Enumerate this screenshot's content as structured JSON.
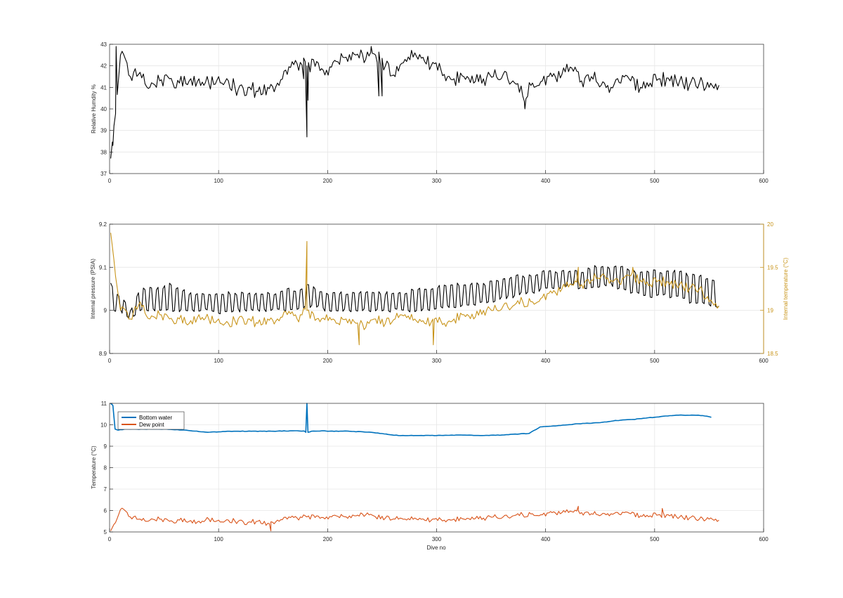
{
  "chart_data": [
    {
      "type": "line",
      "xlabel": "",
      "ylabel": "Relative Humdity %",
      "xlim": [
        0,
        600
      ],
      "ylim": [
        37,
        43
      ],
      "xticks": [
        0,
        100,
        200,
        300,
        400,
        500,
        600
      ],
      "yticks": [
        37,
        38,
        39,
        40,
        41,
        42,
        43
      ],
      "grid": true,
      "colors": {
        "humidity": "#000000"
      },
      "series": [
        {
          "key": "humidity",
          "x_start": 1,
          "x_step": 9,
          "values": [
            37.7,
            42.5,
            41.5,
            41.7,
            41.0,
            41.3,
            41.4,
            41.2,
            41.3,
            41.4,
            41.2,
            41.5,
            41.3,
            40.9,
            41.0,
            40.8,
            41.0,
            41.2,
            41.6,
            42.1,
            42.0,
            42.2,
            41.8,
            42.2,
            42.4,
            42.5,
            42.3,
            42.5,
            42.0,
            41.5,
            42.3,
            42.6,
            42.2,
            42.1,
            41.6,
            41.4,
            41.5,
            41.2,
            41.4,
            41.5,
            41.6,
            41.3,
            40.6,
            41.2,
            41.3,
            41.5,
            41.6,
            41.9,
            41.3,
            41.5,
            41.1,
            41.0,
            41.2,
            41.3,
            41.0,
            41.2,
            41.4,
            41.3,
            41.3,
            41.1,
            41.2,
            41.0,
            41.1
          ],
          "extra_points": [
            [
              3,
              38.3
            ],
            [
              6,
              42.9
            ],
            [
              181,
              38.7
            ],
            [
              182,
              40.4
            ],
            [
              178,
              41.4
            ],
            [
              240,
              42.9
            ],
            [
              250,
              40.6
            ],
            [
              381,
              40.0
            ],
            [
              247,
              40.6
            ]
          ]
        }
      ]
    },
    {
      "type": "line",
      "xlabel": "",
      "ylabel": "Internal pressure (PSIA)",
      "ylabel_right": "Internal temperature (°C)",
      "xlim": [
        0,
        600
      ],
      "ylim": [
        8.9,
        9.2
      ],
      "ylim_right": [
        18.5,
        20
      ],
      "xticks": [
        0,
        100,
        200,
        300,
        400,
        500,
        600
      ],
      "yticks": [
        8.9,
        9,
        9.1,
        9.2
      ],
      "yticks_right": [
        18.5,
        19,
        19.5,
        20
      ],
      "grid": true,
      "colors": {
        "pressure": "#000000",
        "temperature": "#c8941a"
      },
      "series": [
        {
          "key": "pressure",
          "axis": "left",
          "x_start": 1,
          "x_step": 9,
          "low": [
            9.0,
            9.0,
            8.98,
            9.0,
            9.0,
            9.0,
            9.0,
            9.0,
            9.0,
            9.0,
            9.0,
            8.99,
            9.0,
            9.0,
            9.0,
            9.0,
            9.0,
            9.0,
            9.0,
            9.0,
            9.01,
            9.01,
            9.0,
            9.0,
            9.0,
            9.0,
            9.0,
            9.0,
            9.0,
            9.0,
            9.0,
            9.0,
            9.0,
            9.0,
            9.01,
            9.01,
            9.01,
            9.01,
            9.02,
            9.02,
            9.03,
            9.03,
            9.04,
            9.04,
            9.05,
            9.05,
            9.05,
            9.06,
            9.05,
            9.05,
            9.06,
            9.06,
            9.05,
            9.04,
            9.04,
            9.03,
            9.04,
            9.03,
            9.03,
            9.02,
            9.02,
            9.01,
            9.01
          ],
          "high": [
            9.06,
            9.03,
            9.0,
            9.05,
            9.05,
            9.05,
            9.06,
            9.05,
            9.04,
            9.04,
            9.04,
            9.04,
            9.04,
            9.04,
            9.04,
            9.04,
            9.04,
            9.04,
            9.05,
            9.04,
            9.06,
            9.05,
            9.04,
            9.04,
            9.04,
            9.04,
            9.04,
            9.04,
            9.04,
            9.04,
            9.04,
            9.05,
            9.05,
            9.05,
            9.06,
            9.06,
            9.06,
            9.06,
            9.06,
            9.07,
            9.07,
            9.08,
            9.08,
            9.08,
            9.09,
            9.09,
            9.09,
            9.09,
            9.09,
            9.1,
            9.1,
            9.1,
            9.1,
            9.09,
            9.09,
            9.09,
            9.09,
            9.09,
            9.09,
            9.08,
            9.08,
            9.07,
            9.07
          ]
        },
        {
          "key": "temperature",
          "axis": "right",
          "x_start": 1,
          "x_step": 9,
          "values": [
            19.9,
            19.0,
            18.9,
            19.1,
            18.9,
            18.95,
            18.9,
            18.9,
            18.85,
            18.95,
            18.9,
            18.9,
            18.85,
            18.9,
            18.9,
            18.85,
            18.9,
            18.9,
            18.95,
            18.9,
            19.0,
            18.9,
            18.95,
            18.85,
            18.9,
            18.85,
            18.8,
            18.9,
            18.85,
            18.9,
            18.95,
            18.9,
            18.85,
            18.9,
            18.85,
            18.9,
            18.95,
            18.9,
            19.0,
            19.0,
            19.05,
            19.05,
            19.1,
            19.1,
            19.15,
            19.2,
            19.25,
            19.3,
            19.3,
            19.35,
            19.4,
            19.35,
            19.3,
            19.4,
            19.35,
            19.3,
            19.35,
            19.3,
            19.3,
            19.25,
            19.25,
            19.1,
            19.05
          ],
          "extra_points": [
            [
              181,
              19.8
            ],
            [
              229,
              18.6
            ],
            [
              297,
              18.6
            ],
            [
              430,
              19.5
            ],
            [
              480,
              19.5
            ]
          ]
        }
      ]
    },
    {
      "type": "line",
      "xlabel": "Dive no",
      "ylabel": "Temperature (°C)",
      "xlim": [
        0,
        600
      ],
      "ylim": [
        5,
        11
      ],
      "xticks": [
        0,
        100,
        200,
        300,
        400,
        500,
        600
      ],
      "yticks": [
        5,
        6,
        7,
        8,
        9,
        10,
        11
      ],
      "grid": true,
      "legend": "top-left",
      "colors": {
        "bottom": "#0072bd",
        "dew": "#d95319"
      },
      "series": [
        {
          "name": "Bottom water",
          "key": "bottom",
          "points": [
            [
              1,
              11.0
            ],
            [
              3,
              10.9
            ],
            [
              5,
              9.8
            ],
            [
              8,
              9.75
            ],
            [
              15,
              9.8
            ],
            [
              30,
              9.8
            ],
            [
              50,
              9.8
            ],
            [
              70,
              9.75
            ],
            [
              90,
              9.65
            ],
            [
              110,
              9.7
            ],
            [
              130,
              9.7
            ],
            [
              150,
              9.7
            ],
            [
              170,
              9.72
            ],
            [
              179,
              9.7
            ],
            [
              180,
              9.65
            ],
            [
              181,
              11.0
            ],
            [
              182,
              9.65
            ],
            [
              185,
              9.7
            ],
            [
              195,
              9.72
            ],
            [
              200,
              9.7
            ],
            [
              220,
              9.7
            ],
            [
              240,
              9.65
            ],
            [
              255,
              9.55
            ],
            [
              265,
              9.5
            ],
            [
              280,
              9.5
            ],
            [
              300,
              9.5
            ],
            [
              320,
              9.52
            ],
            [
              340,
              9.5
            ],
            [
              360,
              9.52
            ],
            [
              385,
              9.6
            ],
            [
              395,
              9.9
            ],
            [
              410,
              9.95
            ],
            [
              430,
              10.05
            ],
            [
              450,
              10.1
            ],
            [
              465,
              10.2
            ],
            [
              480,
              10.25
            ],
            [
              500,
              10.35
            ],
            [
              520,
              10.45
            ],
            [
              540,
              10.45
            ],
            [
              548,
              10.4
            ],
            [
              552,
              10.35
            ]
          ]
        },
        {
          "name": "Dew point",
          "key": "dew",
          "x_start": 1,
          "x_step": 9,
          "values": [
            5.05,
            6.05,
            5.7,
            5.6,
            5.55,
            5.6,
            5.5,
            5.55,
            5.5,
            5.5,
            5.6,
            5.55,
            5.55,
            5.5,
            5.45,
            5.5,
            5.4,
            5.55,
            5.6,
            5.65,
            5.7,
            5.75,
            5.7,
            5.75,
            5.7,
            5.75,
            5.8,
            5.7,
            5.65,
            5.6,
            5.6,
            5.65,
            5.55,
            5.6,
            5.55,
            5.6,
            5.6,
            5.6,
            5.65,
            5.7,
            5.7,
            5.75,
            5.8,
            5.85,
            5.8,
            5.9,
            5.9,
            5.95,
            5.9,
            5.85,
            5.8,
            5.85,
            5.8,
            5.85,
            5.75,
            5.75,
            5.8,
            5.75,
            5.7,
            5.65,
            5.6,
            5.6,
            5.55
          ],
          "extra_points": [
            [
              148,
              5.05
            ],
            [
              507,
              6.1
            ],
            [
              430,
              6.2
            ]
          ]
        }
      ]
    }
  ]
}
